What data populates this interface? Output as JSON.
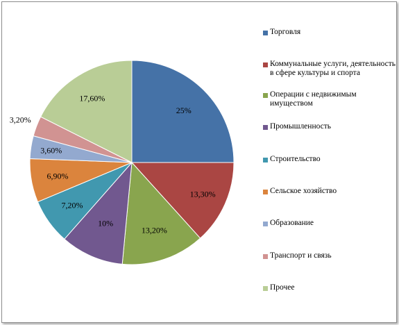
{
  "chart_data": {
    "type": "pie",
    "title": "",
    "start_angle_deg": 0,
    "direction": "clockwise",
    "legend_position": "right",
    "slices": [
      {
        "label": "Торговля",
        "value": 25,
        "display": "25%",
        "color": "#4572A7"
      },
      {
        "label": "Коммунальные услуги, деятельность в сфере культуры и спорта",
        "value": 13.3,
        "display": "13,30%",
        "color": "#AA4643"
      },
      {
        "label": "Операции с недвижимым имуществом",
        "value": 13.2,
        "display": "13,20%",
        "color": "#89A54E"
      },
      {
        "label": "Промышленность",
        "value": 10,
        "display": "10%",
        "color": "#71588F"
      },
      {
        "label": "Строительство",
        "value": 7.2,
        "display": "7,20%",
        "color": "#4198AF"
      },
      {
        "label": "Сельское хозяйство",
        "value": 6.9,
        "display": "6,90%",
        "color": "#DB843D"
      },
      {
        "label": "Образование",
        "value": 3.6,
        "display": "3,60%",
        "color": "#93A9CF"
      },
      {
        "label": "Транспорт и связь",
        "value": 3.2,
        "display": "3,20%",
        "color": "#D19392"
      },
      {
        "label": "Прочее",
        "value": 17.6,
        "display": "17,60%",
        "color": "#B9CD96"
      }
    ]
  }
}
